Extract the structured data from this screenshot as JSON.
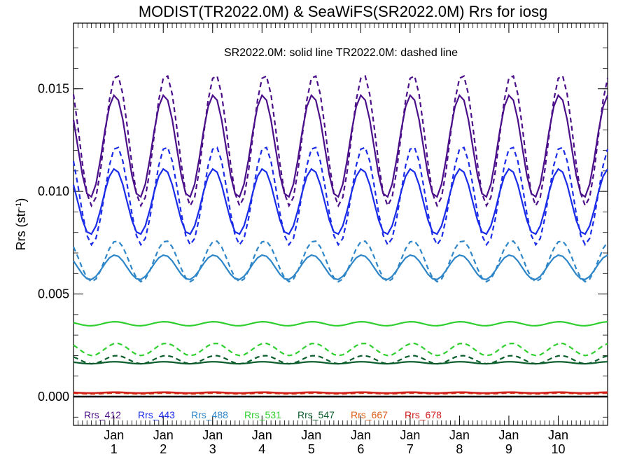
{
  "chart_data": {
    "type": "line",
    "title": "MODIST(TR2022.0M) & SeaWiFS(SR2022.0M)  Rrs for iosg",
    "annotation": "SR2022.0M: solid line   TR2022.0M: dashed line",
    "ylabel": "Rrs (str",
    "ylabel_sup": "-1",
    "ylabel_close": ")",
    "xlabel": "",
    "ylim": [
      -0.0014,
      0.0182
    ],
    "xlim": [
      1.0,
      120.0
    ],
    "yticks": [
      0.0,
      0.005,
      0.01,
      0.015
    ],
    "ytick_labels": [
      "0.000",
      "0.005",
      "0.010",
      "0.015"
    ],
    "x_month_ticks": [
      {
        "x": 10,
        "month": "Jan",
        "year": "1"
      },
      {
        "x": 21,
        "month": "Jan",
        "year": "2"
      },
      {
        "x": 32,
        "month": "Jan",
        "year": "3"
      },
      {
        "x": 43,
        "month": "Jan",
        "year": "4"
      },
      {
        "x": 54,
        "month": "Jan",
        "year": "5"
      },
      {
        "x": 65,
        "month": "Jan",
        "year": "6"
      },
      {
        "x": 76,
        "month": "Jan",
        "year": "7"
      },
      {
        "x": 87,
        "month": "Jan",
        "year": "8"
      },
      {
        "x": 98,
        "month": "Jan",
        "year": "9"
      },
      {
        "x": 109,
        "month": "Jan",
        "year": "10"
      }
    ],
    "zero_line": true,
    "grid": false,
    "legend_position": "bottom-left",
    "series": [
      {
        "name": "Rrs_412",
        "color": "#4b0f8a",
        "solid": {
          "mean": 0.0122,
          "amp": 0.0025,
          "phase": 10.2
        },
        "dashed": {
          "mean": 0.0125,
          "amp": 0.0032,
          "phase": 10.6
        }
      },
      {
        "name": "Rrs_443",
        "color": "#1a2ce8",
        "solid": {
          "mean": 0.0095,
          "amp": 0.0016,
          "phase": 10.2
        },
        "dashed": {
          "mean": 0.0098,
          "amp": 0.0024,
          "phase": 10.6
        }
      },
      {
        "name": "Rrs_488",
        "color": "#2e86c8",
        "solid": {
          "mean": 0.0063,
          "amp": 0.0006,
          "phase": 10.2
        },
        "dashed": {
          "mean": 0.0066,
          "amp": 0.001,
          "phase": 10.6
        }
      },
      {
        "name": "Rrs_531",
        "color": "#2fcf2f",
        "solid": {
          "mean": 0.00355,
          "amp": 0.0001,
          "phase": 10.2
        },
        "dashed": {
          "mean": 0.0023,
          "amp": 0.0003,
          "phase": 10.6
        }
      },
      {
        "name": "Rrs_547",
        "color": "#0b5e2c",
        "solid": {
          "mean": 0.00165,
          "amp": 5e-05,
          "phase": 10.2
        },
        "dashed": {
          "mean": 0.0018,
          "amp": 0.0002,
          "phase": 10.6
        }
      },
      {
        "name": "Rrs_667",
        "color": "#e0601a",
        "solid": {
          "mean": 0.00018,
          "amp": 2e-05,
          "phase": 10.2
        },
        "dashed": {
          "mean": 0.00015,
          "amp": 2e-05,
          "phase": 10.6
        }
      },
      {
        "name": "Rrs_678",
        "color": "#d0201f",
        "solid": {
          "mean": 0.0002,
          "amp": 2e-05,
          "phase": 10.2
        },
        "dashed": {
          "mean": 0.00017,
          "amp": 2e-05,
          "phase": 10.6
        }
      }
    ]
  }
}
